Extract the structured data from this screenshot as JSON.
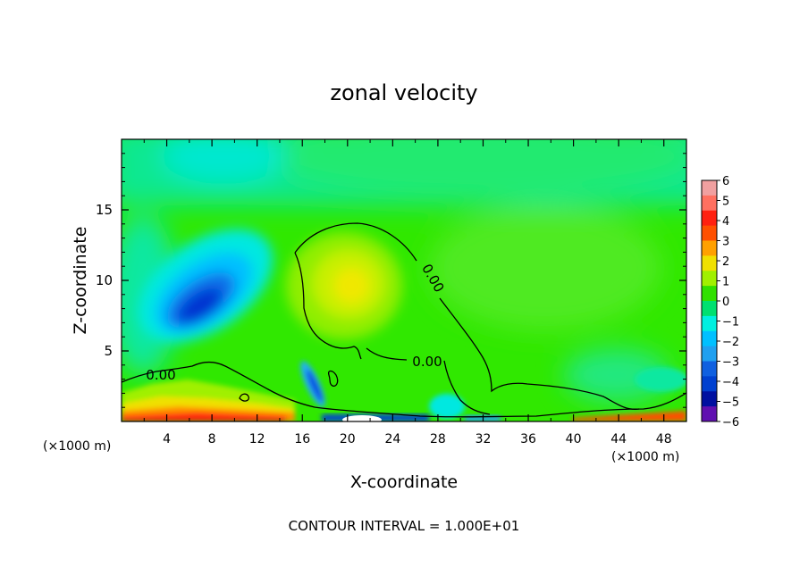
{
  "chart_data": {
    "type": "heatmap",
    "title": "zonal velocity",
    "xlabel": "X-coordinate",
    "ylabel": "Z-coordinate",
    "x_unit_left": "(×1000 m)",
    "x_unit_right": "(×1000 m)",
    "xlim": [
      0,
      50
    ],
    "ylim": [
      0,
      20
    ],
    "x_ticks": [
      4,
      8,
      12,
      16,
      20,
      24,
      28,
      32,
      36,
      40,
      44,
      48
    ],
    "y_ticks": [
      5,
      10,
      15
    ],
    "contour_label": "0.00",
    "footer": "CONTOUR INTERVAL = 1.000E+01",
    "colorbar": {
      "ticks": [
        "6",
        "5",
        "4",
        "3",
        "2",
        "1",
        "0",
        "−1",
        "−2",
        "−3",
        "−4",
        "−5",
        "−6"
      ],
      "colors": [
        "#f0a0a0",
        "#ff7060",
        "#ff2010",
        "#ff5000",
        "#ffa000",
        "#f0e000",
        "#a0f000",
        "#30e000",
        "#00e070",
        "#00f0e0",
        "#00c0ff",
        "#20a0f0",
        "#1060e0",
        "#0040d0",
        "#0010a0",
        "#6010b0"
      ]
    },
    "features": [
      {
        "type": "negative-core",
        "x": 8.5,
        "z": 7.8,
        "value": -5
      },
      {
        "type": "positive-core",
        "x": 20.5,
        "z": 9.8,
        "value": 2
      },
      {
        "type": "negative-jet",
        "x": 17.5,
        "z": 2.5,
        "value": -4
      },
      {
        "type": "surface-positive-layer",
        "x_range": [
          0,
          16
        ],
        "z_range": [
          0,
          3
        ]
      }
    ]
  }
}
